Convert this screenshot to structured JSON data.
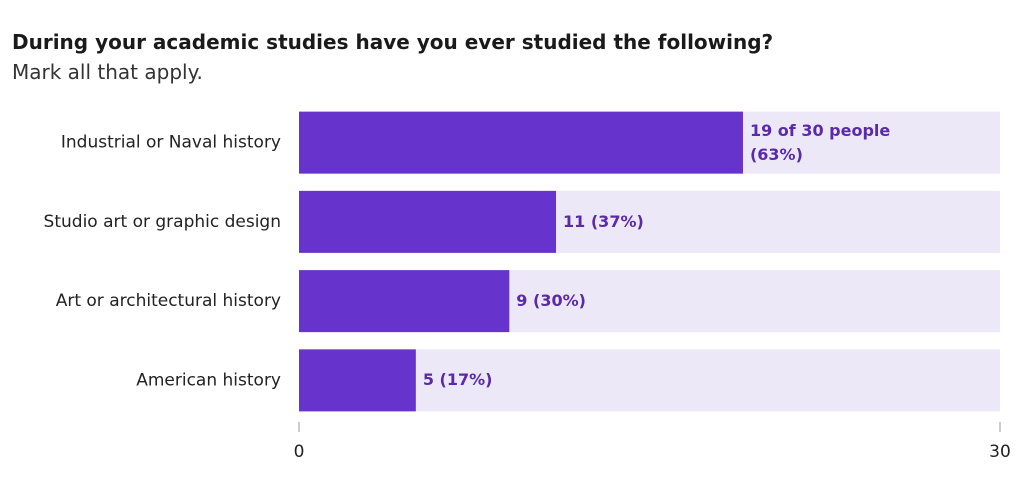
{
  "chart_data": {
    "type": "barh",
    "title": "During your academic studies have you ever studied the following?",
    "subtitle": "Mark all that apply.",
    "categories": [
      "Industrial or Naval history",
      "Studio art or graphic design",
      "Art or architectural history",
      "American history"
    ],
    "values": [
      19,
      11,
      9,
      5
    ],
    "value_labels": [
      "19 of 30 people (63%)",
      "11 (37%)",
      "9 (30%)",
      "5 (17%)"
    ],
    "color": "#6633cc",
    "track_color": "#ece8f8",
    "label_color": "#5b2aa8",
    "xlim": [
      0,
      30
    ],
    "xticks": [
      0,
      30
    ]
  }
}
